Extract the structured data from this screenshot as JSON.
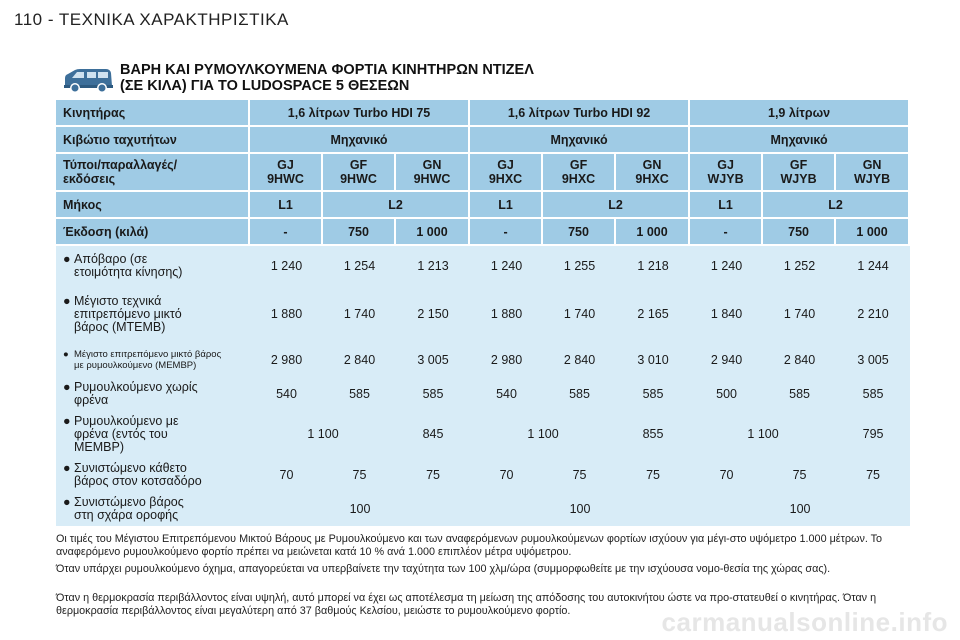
{
  "header": {
    "page_title": "110 - ΤΕΧΝΙΚΑ ΧΑΡΑΚΤΗΡΙΣΤΙΚΑ"
  },
  "section": {
    "title_line1": "ΒΑΡΗ ΚΑΙ ΡΥΜΟΥΛΚΟΥΜΕΝΑ ΦΟΡΤΙΑ ΚΙΝΗΤΗΡΩΝ ΝΤΙΖΕΛ",
    "title_line2": "(ΣΕ ΚΙΛΑ) ΓΙΑ ΤΟ LUDOSPACE 5 ΘΕΣΕΩΝ",
    "icon": "van-icon"
  },
  "table": {
    "engine": {
      "label": "Κινητήρας",
      "values": [
        "1,6 λίτρων Turbo HDI 75",
        "1,6 λίτρων Turbo HDI 92",
        "1,9 λίτρων"
      ]
    },
    "gearbox": {
      "label": "Κιβώτιο ταχυτήτων",
      "values": [
        "Μηχανικό",
        "Μηχανικό",
        "Μηχανικό"
      ]
    },
    "types": {
      "label_line1": "Τύποι/παραλλαγές/",
      "label_line2": "εκδόσεις",
      "values": [
        [
          "GJ",
          "9HWC"
        ],
        [
          "GF",
          "9HWC"
        ],
        [
          "GN",
          "9HWC"
        ],
        [
          "GJ",
          "9HXC"
        ],
        [
          "GF",
          "9HXC"
        ],
        [
          "GN",
          "9HXC"
        ],
        [
          "GJ",
          "WJYB"
        ],
        [
          "GF",
          "WJYB"
        ],
        [
          "GN",
          "WJYB"
        ]
      ]
    },
    "length": {
      "label": "Μήκος",
      "values": [
        "L1",
        "L2",
        "L1",
        "L2",
        "L1",
        "L2"
      ]
    },
    "version": {
      "label": "Έκδοση (κιλά)",
      "values": [
        "-",
        "750",
        "1 000",
        "-",
        "750",
        "1 000",
        "-",
        "750",
        "1 000"
      ]
    },
    "kerb": {
      "label_line1": "Απόβαρο (σε",
      "label_line2": "ετοιμότητα κίνησης)",
      "values": [
        "1 240",
        "1 254",
        "1 213",
        "1 240",
        "1 255",
        "1 218",
        "1 240",
        "1 252",
        "1 244"
      ]
    },
    "mtem": {
      "label_line1": "Μέγιστο τεχνικά",
      "label_line2": "επιτρεπόμενο μικτό",
      "label_line3": "βάρος (MTEMB)",
      "values": [
        "1 880",
        "1 740",
        "2 150",
        "1 880",
        "1 740",
        "2 165",
        "1 840",
        "1 740",
        "2 210"
      ]
    },
    "mtembr": {
      "label_line1": "Μέγιστο επιτρεπόμενο μικτό βάρος",
      "label_line2": "με ρυμουλκούμενο (MEMBP)",
      "values": [
        "2 980",
        "2 840",
        "3 005",
        "2 980",
        "2 840",
        "3 010",
        "2 940",
        "2 840",
        "3 005"
      ]
    },
    "unbraked": {
      "label_line1": "Ρυμουλκούμενο χωρίς",
      "label_line2": "φρένα",
      "values": [
        "540",
        "585",
        "585",
        "540",
        "585",
        "585",
        "500",
        "585",
        "585"
      ]
    },
    "braked": {
      "label_line1": "Ρυμουλκούμενο με",
      "label_line2": "φρένα (εντός του",
      "label_line3": "MEMBP)",
      "values": [
        "1 100",
        "845",
        "1 100",
        "855",
        "1 100",
        "795"
      ]
    },
    "noseweight": {
      "label_line1": "Συνιστώμενο κάθετο",
      "label_line2": "βάρος στον κοτσαδόρο",
      "values": [
        "70",
        "75",
        "75",
        "70",
        "75",
        "75",
        "70",
        "75",
        "75"
      ]
    },
    "roof": {
      "label_line1": "Συνιστώμενο βάρος",
      "label_line2": "στη σχάρα οροφής",
      "values": [
        "100",
        "100",
        "100"
      ]
    }
  },
  "notes": [
    "Οι τιμές του Μέγιστου Επιτρεπόμενου Μικτού Βάρους με Ρυμουλκούμενο και των αναφερόμενων ρυμουλκούμενων φορτίων ισχύουν για μέγι-στο υψόμετρο 1.000 μέτρων. Το αναφερόμενο ρυμουλκούμενο φορτίο πρέπει να μειώνεται κατά 10 % ανά 1.000 επιπλέον μέτρα υψόμετρου.",
    "Όταν υπάρχει ρυμουλκούμενο όχημα, απαγορεύεται να υπερβαίνετε την ταχύτητα των 100 χλμ/ώρα (συμμορφωθείτε με την ισχύουσα νομο-θεσία της χώρας σας).",
    "Όταν η θερμοκρασία περιβάλλοντος είναι υψηλή, αυτό μπορεί να έχει ως αποτέλεσμα τη μείωση της απόδοσης του αυτοκινήτου ώστε να προ-στατευθεί ο κινητήρας. Όταν η θερμοκρασία περιβάλλοντος είναι μεγαλύτερη από 37 βαθμούς Κελσίου, μειώστε το ρυμουλκούμενο φορτίο."
  ],
  "watermark": "carmanualsonline.info"
}
